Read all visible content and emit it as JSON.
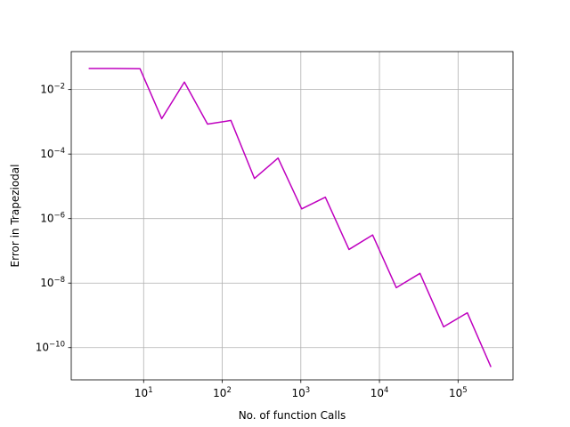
{
  "chart_data": {
    "type": "line",
    "xlabel": "No. of function Calls",
    "ylabel": "Error in Trapeziodal",
    "xscale": "log",
    "yscale": "log",
    "xlim": [
      1.2,
      500000
    ],
    "ylim": [
      1e-11,
      0.15
    ],
    "grid": true,
    "xticks": [
      {
        "value": 10,
        "base": "10",
        "exp": "1"
      },
      {
        "value": 100,
        "base": "10",
        "exp": "2"
      },
      {
        "value": 1000,
        "base": "10",
        "exp": "3"
      },
      {
        "value": 10000,
        "base": "10",
        "exp": "4"
      },
      {
        "value": 100000,
        "base": "10",
        "exp": "5"
      }
    ],
    "yticks": [
      {
        "value": 1e-10,
        "base": "10",
        "exp": "−10"
      },
      {
        "value": 1e-08,
        "base": "10",
        "exp": "−8"
      },
      {
        "value": 1e-06,
        "base": "10",
        "exp": "−6"
      },
      {
        "value": 0.0001,
        "base": "10",
        "exp": "−4"
      },
      {
        "value": 0.01,
        "base": "10",
        "exp": "−2"
      }
    ],
    "series": [
      {
        "color": "#bf00bf",
        "x": [
          2,
          4,
          9,
          17,
          33,
          65,
          129,
          257,
          513,
          1025,
          2049,
          4097,
          8193,
          16385,
          32769,
          65537,
          131073,
          262145
        ],
        "y": [
          0.045,
          0.045,
          0.044,
          0.00125,
          0.017,
          0.00085,
          0.0011,
          1.75e-05,
          7.5e-05,
          2e-06,
          4.6e-06,
          1.1e-07,
          3.1e-07,
          7.2e-09,
          2e-08,
          4.4e-10,
          1.2e-09,
          2.5e-11
        ]
      }
    ]
  }
}
